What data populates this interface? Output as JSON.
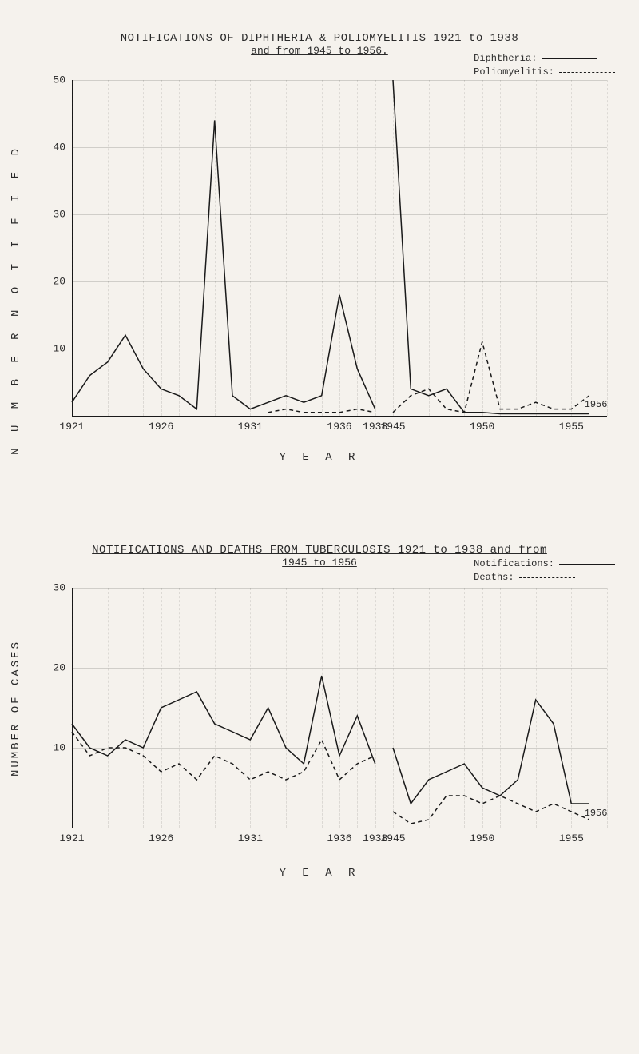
{
  "chart1": {
    "type": "line",
    "title": "NOTIFICATIONS OF DIPHTHERIA & POLIOMYELITIS 1921 to 1938",
    "subtitle": "and from 1945 to 1956.",
    "y_label": "N U M B E R   N O T I F I E D",
    "x_label": "Y E A R",
    "legend": [
      {
        "label": "Diphtheria:",
        "style": "solid"
      },
      {
        "label": "Poliomyelitis:",
        "style": "dashed"
      }
    ],
    "ylim": [
      0,
      50
    ],
    "ytick_step": 10,
    "x_range": [
      1921,
      1957
    ],
    "x_gap": [
      1939,
      1944
    ],
    "x_ticks": [
      1921,
      1926,
      1931,
      1936,
      1938,
      1945,
      1950,
      1955
    ],
    "grid_color": "rgba(0,0,0,0.15)",
    "line_color": "#1a1a1a",
    "line_width": 1.5,
    "year_marker": "1956",
    "series": [
      {
        "name": "Diphtheria",
        "style": "solid",
        "segments": [
          [
            [
              1921,
              2
            ],
            [
              1922,
              6
            ],
            [
              1923,
              8
            ],
            [
              1924,
              12
            ],
            [
              1925,
              7
            ],
            [
              1926,
              4
            ],
            [
              1927,
              3
            ],
            [
              1928,
              1
            ],
            [
              1929,
              44
            ],
            [
              1930,
              3
            ],
            [
              1931,
              1
            ],
            [
              1932,
              2
            ],
            [
              1933,
              3
            ],
            [
              1934,
              2
            ],
            [
              1935,
              3
            ],
            [
              1936,
              18
            ],
            [
              1937,
              7
            ],
            [
              1938,
              1
            ]
          ],
          [
            [
              1945,
              50
            ],
            [
              1946,
              4
            ],
            [
              1947,
              3
            ],
            [
              1948,
              4
            ],
            [
              1949,
              0.5
            ],
            [
              1950,
              0.5
            ],
            [
              1951,
              0.3
            ],
            [
              1952,
              0.3
            ],
            [
              1953,
              0.3
            ],
            [
              1954,
              0.3
            ],
            [
              1955,
              0.3
            ],
            [
              1956,
              0.3
            ]
          ]
        ]
      },
      {
        "name": "Poliomyelitis",
        "style": "dashed",
        "segments": [
          [
            [
              1932,
              0.5
            ],
            [
              1933,
              1
            ],
            [
              1934,
              0.5
            ],
            [
              1935,
              0.5
            ],
            [
              1936,
              0.5
            ],
            [
              1937,
              1
            ],
            [
              1938,
              0.5
            ]
          ],
          [
            [
              1945,
              0.5
            ],
            [
              1946,
              3
            ],
            [
              1947,
              4
            ],
            [
              1948,
              1
            ],
            [
              1949,
              0.5
            ],
            [
              1950,
              11
            ],
            [
              1951,
              1
            ],
            [
              1952,
              1
            ],
            [
              1953,
              2
            ],
            [
              1954,
              1
            ],
            [
              1955,
              1
            ],
            [
              1956,
              3
            ]
          ]
        ]
      }
    ]
  },
  "chart2": {
    "type": "line",
    "title": "NOTIFICATIONS AND DEATHS FROM TUBERCULOSIS 1921 to 1938 and from",
    "subtitle": "1945 to 1956",
    "y_label": "NUMBER OF CASES",
    "x_label": "Y E A R",
    "legend": [
      {
        "label": "Notifications:",
        "style": "solid"
      },
      {
        "label": "Deaths:",
        "style": "dashed"
      }
    ],
    "ylim": [
      0,
      30
    ],
    "ytick_step": 10,
    "x_range": [
      1921,
      1957
    ],
    "x_gap": [
      1939,
      1944
    ],
    "x_ticks": [
      1921,
      1926,
      1931,
      1936,
      1938,
      1945,
      1950,
      1955
    ],
    "grid_color": "rgba(0,0,0,0.15)",
    "line_color": "#1a1a1a",
    "line_width": 1.5,
    "year_marker": "1956",
    "series": [
      {
        "name": "Notifications",
        "style": "solid",
        "segments": [
          [
            [
              1921,
              13
            ],
            [
              1922,
              10
            ],
            [
              1923,
              9
            ],
            [
              1924,
              11
            ],
            [
              1925,
              10
            ],
            [
              1926,
              15
            ],
            [
              1927,
              16
            ],
            [
              1928,
              17
            ],
            [
              1929,
              13
            ],
            [
              1930,
              12
            ],
            [
              1931,
              11
            ],
            [
              1932,
              15
            ],
            [
              1933,
              10
            ],
            [
              1934,
              8
            ],
            [
              1935,
              19
            ],
            [
              1936,
              9
            ],
            [
              1937,
              14
            ],
            [
              1938,
              8
            ]
          ],
          [
            [
              1945,
              10
            ],
            [
              1946,
              3
            ],
            [
              1947,
              6
            ],
            [
              1948,
              7
            ],
            [
              1949,
              8
            ],
            [
              1950,
              5
            ],
            [
              1951,
              4
            ],
            [
              1952,
              6
            ],
            [
              1953,
              16
            ],
            [
              1954,
              13
            ],
            [
              1955,
              3
            ],
            [
              1956,
              3
            ]
          ]
        ]
      },
      {
        "name": "Deaths",
        "style": "dashed",
        "segments": [
          [
            [
              1921,
              12
            ],
            [
              1922,
              9
            ],
            [
              1923,
              10
            ],
            [
              1924,
              10
            ],
            [
              1925,
              9
            ],
            [
              1926,
              7
            ],
            [
              1927,
              8
            ],
            [
              1928,
              6
            ],
            [
              1929,
              9
            ],
            [
              1930,
              8
            ],
            [
              1931,
              6
            ],
            [
              1932,
              7
            ],
            [
              1933,
              6
            ],
            [
              1934,
              7
            ],
            [
              1935,
              11
            ],
            [
              1936,
              6
            ],
            [
              1937,
              8
            ],
            [
              1938,
              9
            ]
          ],
          [
            [
              1945,
              2
            ],
            [
              1946,
              0.5
            ],
            [
              1947,
              1
            ],
            [
              1948,
              4
            ],
            [
              1949,
              4
            ],
            [
              1950,
              3
            ],
            [
              1951,
              4
            ],
            [
              1952,
              3
            ],
            [
              1953,
              2
            ],
            [
              1954,
              3
            ],
            [
              1955,
              2
            ],
            [
              1956,
              1
            ]
          ]
        ]
      }
    ]
  }
}
